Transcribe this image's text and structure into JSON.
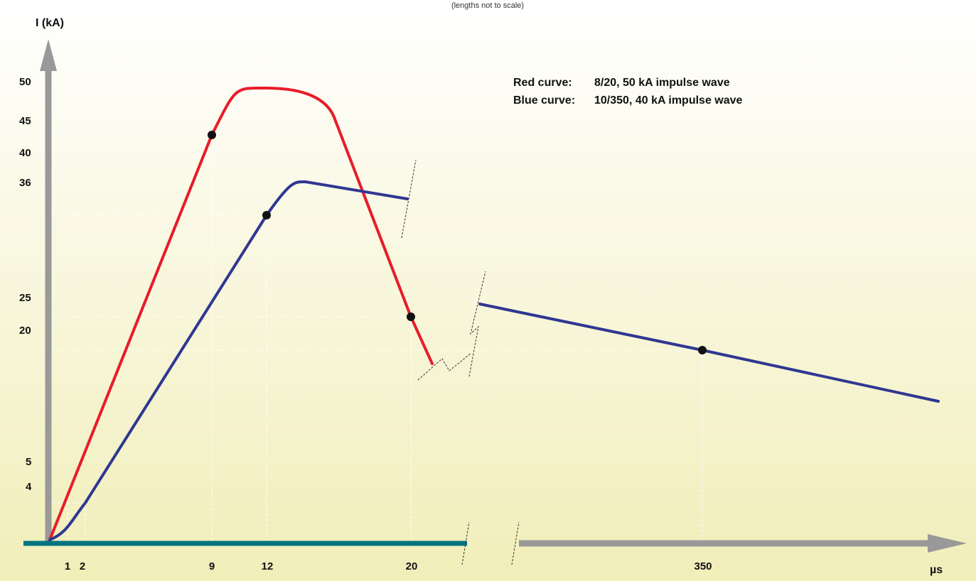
{
  "header_text": "(lengths not to scale)",
  "colors": {
    "background_top": "#ffffff",
    "background_bottom": "#f1eeb9",
    "axis": "#999999",
    "baseline": "#007480",
    "red_curve": "#e81c2a",
    "blue_curve": "#2f3792",
    "marker": "#111111"
  },
  "chart_data": {
    "type": "line",
    "title": "",
    "ylabel": "I (kA)",
    "xlabel": "µs",
    "y_ticks": [
      "50",
      "45",
      "40",
      "36",
      "25",
      "20",
      "5",
      "4"
    ],
    "x_ticks": [
      "1",
      "2",
      "9",
      "12",
      "20",
      "350"
    ],
    "legend": [
      {
        "label": "Red curve:",
        "text": "8/20, 50 kA impulse wave"
      },
      {
        "label": "Blue curve:",
        "text": "10/350, 40 kA impulse wave"
      }
    ],
    "series": [
      {
        "name": "8/20, 50 kA impulse wave",
        "color": "red",
        "points": [
          [
            0,
            0
          ],
          [
            9,
            45
          ],
          [
            12,
            50
          ],
          [
            15,
            47
          ],
          [
            20,
            25
          ],
          [
            21,
            18
          ]
        ],
        "markers": [
          [
            9,
            45
          ],
          [
            20,
            25
          ]
        ]
      },
      {
        "name": "10/350, 40 kA impulse wave",
        "color": "blue",
        "points": [
          [
            0,
            0
          ],
          [
            2,
            4
          ],
          [
            12,
            36
          ],
          [
            13.5,
            40
          ],
          [
            20,
            38
          ],
          [
            350,
            20
          ],
          [
            650,
            15
          ]
        ],
        "markers": [
          [
            12,
            36
          ],
          [
            350,
            20
          ]
        ]
      }
    ],
    "grid": "dashed reference lines",
    "legend_position": "top-right"
  }
}
